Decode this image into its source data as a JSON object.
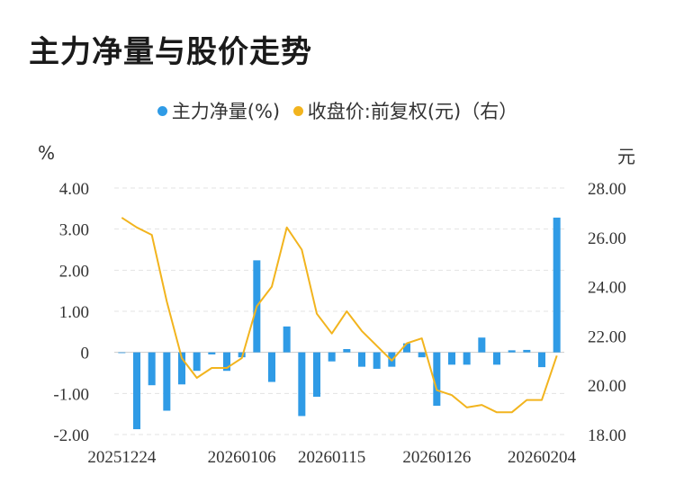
{
  "title": "主力净量与股价走势",
  "legend": {
    "net_label": "主力净量(%)",
    "price_label": "收盘价:前复权(元)（右）"
  },
  "units": {
    "left": "%",
    "right": "元"
  },
  "colors": {
    "bar": "#2f9be6",
    "line": "#f2b41e",
    "grid": "#e3e3e3",
    "zero": "#cccccc"
  },
  "chart_data": {
    "type": "bar+line",
    "x_tick_labels": [
      "20251224",
      "20260106",
      "20260115",
      "20260126",
      "20260204"
    ],
    "left_axis": {
      "ylim": [
        -2.0,
        4.0
      ],
      "ticks": [
        "4.00",
        "3.00",
        "2.00",
        "1.00",
        "0",
        "-1.00",
        "-2.00"
      ]
    },
    "right_axis": {
      "ylim": [
        18.0,
        28.0
      ],
      "ticks": [
        "28.00",
        "26.00",
        "24.00",
        "22.00",
        "20.00",
        "18.00"
      ]
    },
    "series": [
      {
        "name": "主力净量(%)",
        "type": "bar",
        "axis": "left",
        "values": [
          0.0,
          -1.87,
          -0.8,
          -1.42,
          -0.78,
          -0.45,
          -0.05,
          -0.45,
          -0.12,
          2.24,
          -0.72,
          0.63,
          -1.55,
          -1.08,
          -0.22,
          0.08,
          -0.35,
          -0.4,
          -0.35,
          0.22,
          -0.12,
          -1.3,
          -0.3,
          -0.3,
          0.36,
          -0.3,
          0.05,
          0.06,
          -0.36,
          3.28
        ]
      },
      {
        "name": "收盘价:前复权(元)（右）",
        "type": "line",
        "axis": "right",
        "values": [
          26.8,
          26.4,
          26.1,
          23.4,
          21.1,
          20.3,
          20.7,
          20.7,
          21.1,
          23.2,
          24.0,
          26.4,
          25.5,
          22.9,
          22.1,
          23.0,
          22.2,
          21.6,
          21.0,
          21.7,
          21.9,
          19.8,
          19.6,
          19.1,
          19.2,
          18.9,
          18.9,
          19.4,
          19.4,
          21.2
        ]
      }
    ]
  }
}
